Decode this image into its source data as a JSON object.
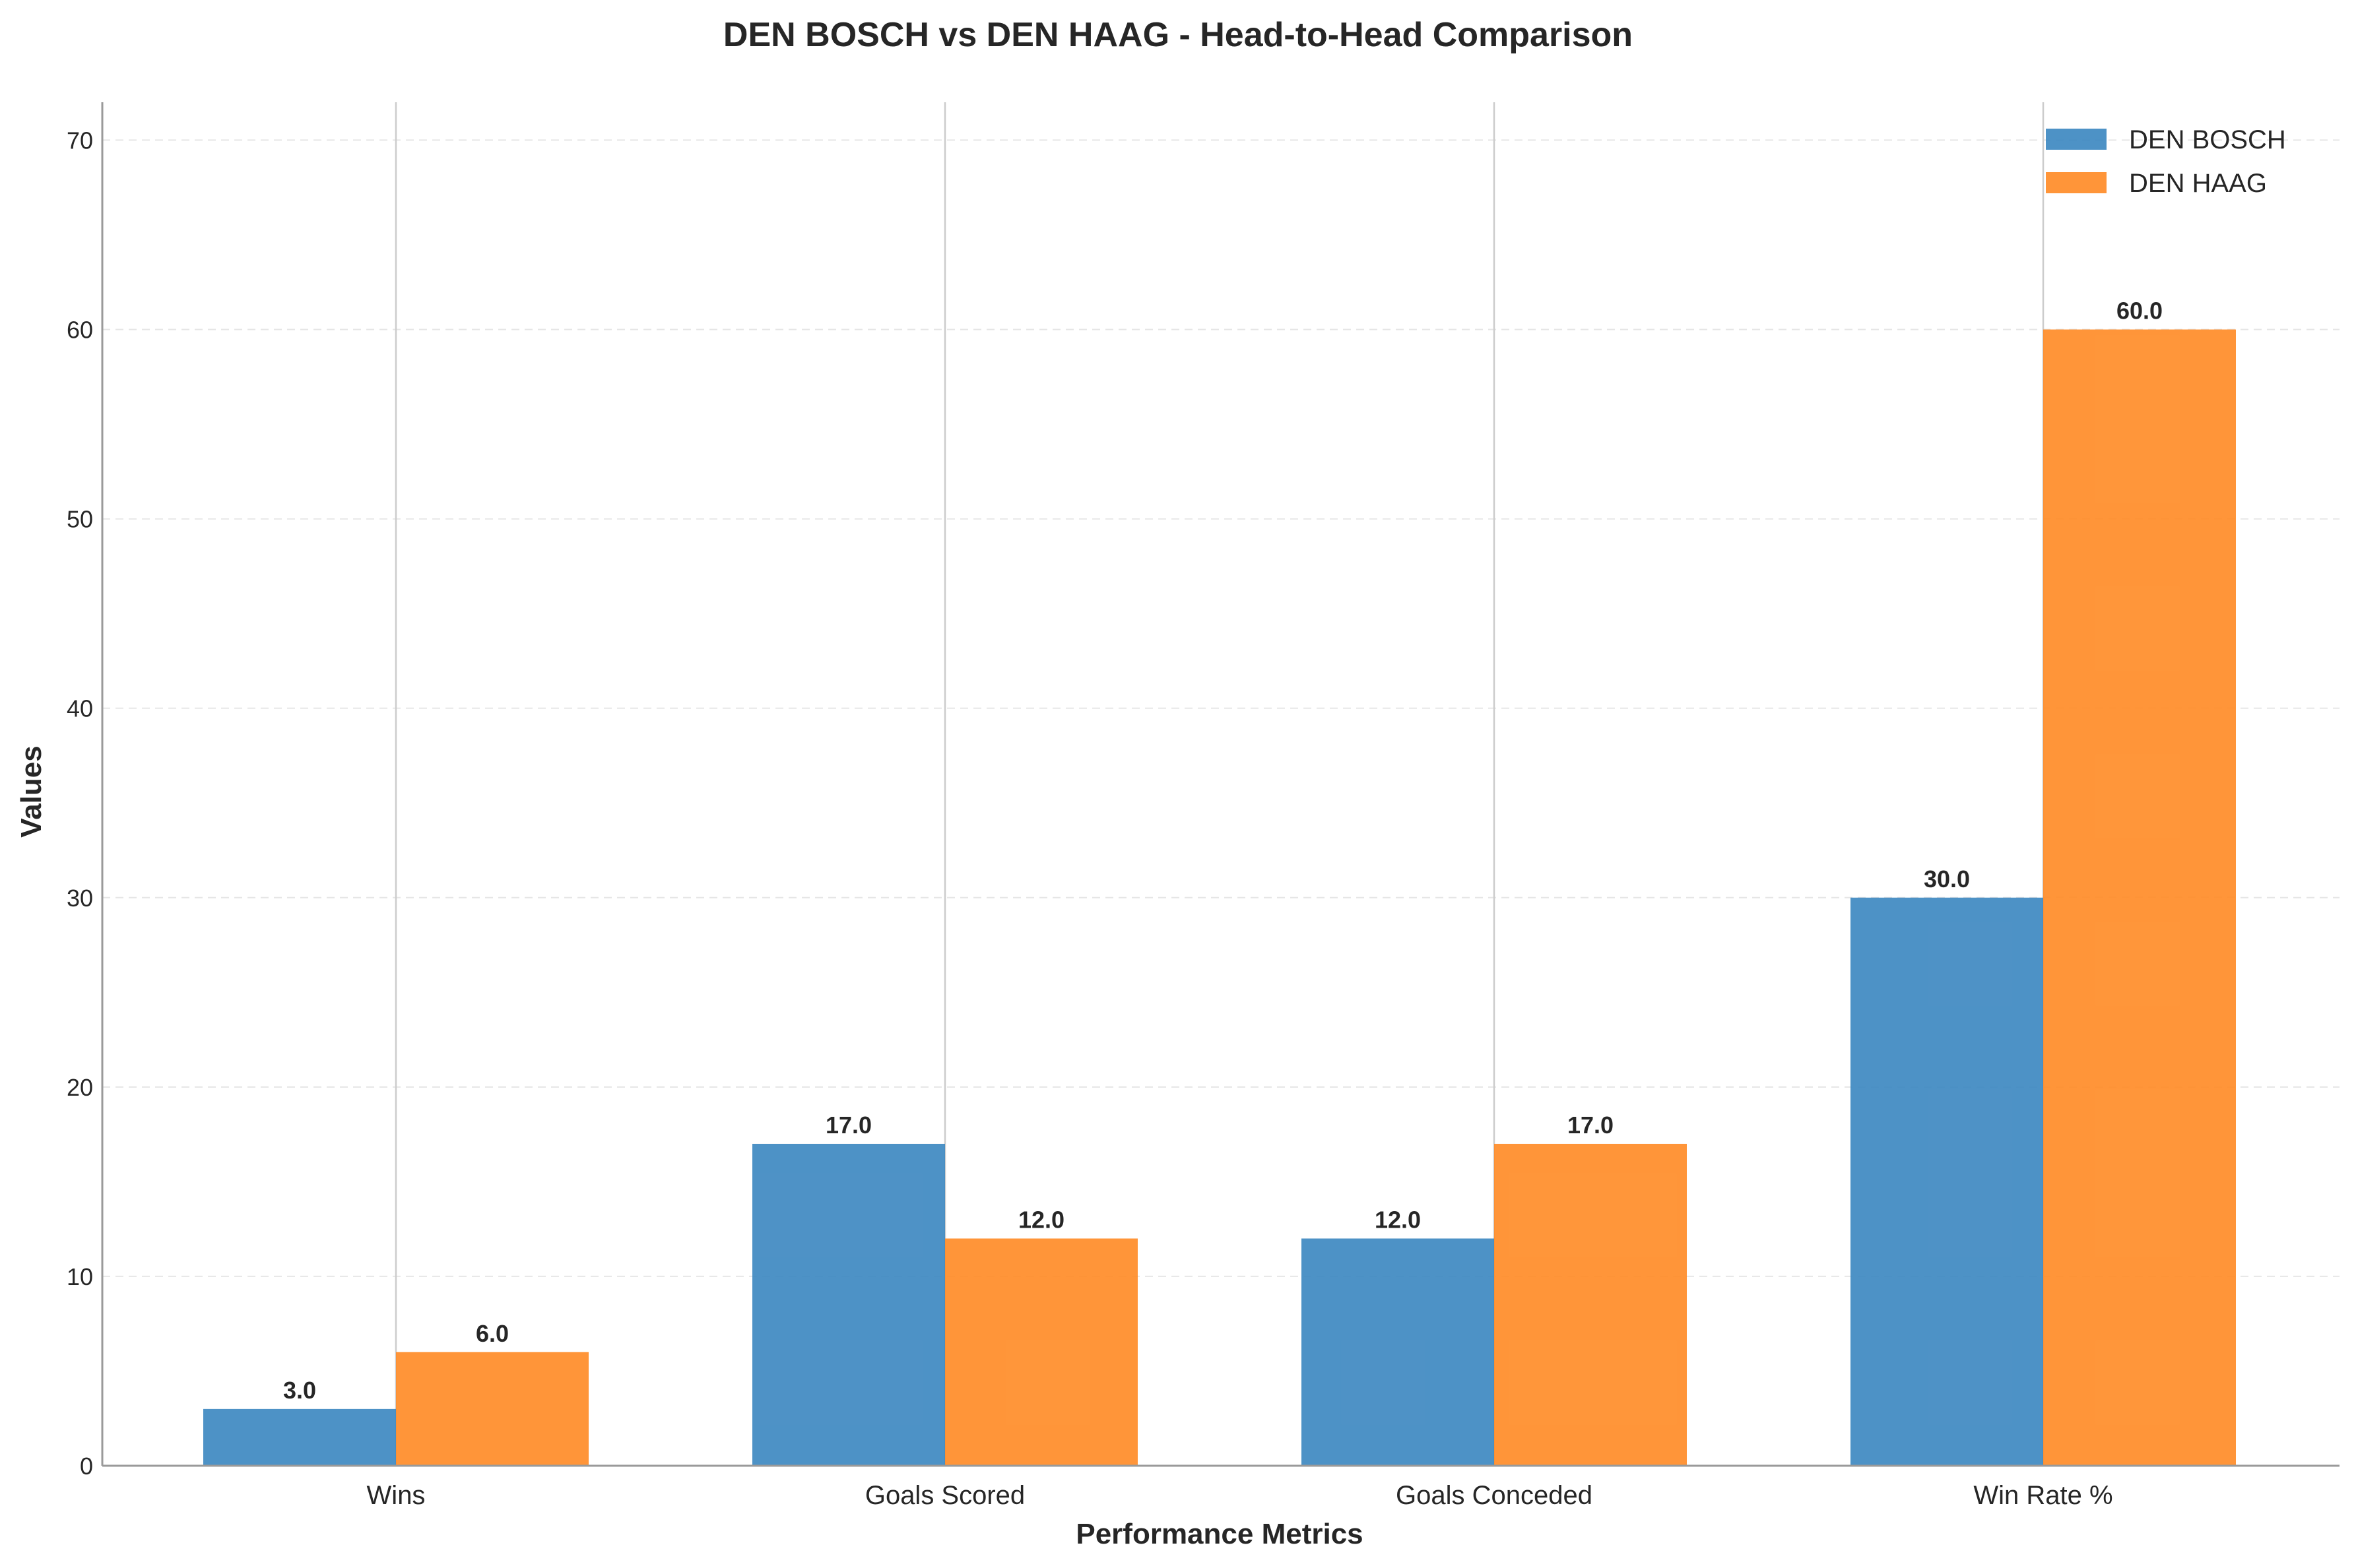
{
  "chart_data": {
    "type": "bar",
    "title": "DEN BOSCH vs DEN HAAG - Head-to-Head Comparison",
    "xlabel": "Performance Metrics",
    "ylabel": "Values",
    "categories": [
      "Wins",
      "Goals Scored",
      "Goals Conceded",
      "Win Rate %"
    ],
    "series": [
      {
        "name": "DEN BOSCH",
        "color": "#3a86c0",
        "values": [
          3.0,
          17.0,
          12.0,
          30.0
        ]
      },
      {
        "name": "DEN HAAG",
        "color": "#ff8a24",
        "values": [
          6.0,
          12.0,
          17.0,
          60.0
        ]
      }
    ],
    "ylim": [
      0,
      72
    ],
    "yticks": [
      0,
      10,
      20,
      30,
      40,
      50,
      60,
      70
    ],
    "grid": "y-dashed",
    "legend": "top-right",
    "value_label_format": "one-decimal"
  }
}
